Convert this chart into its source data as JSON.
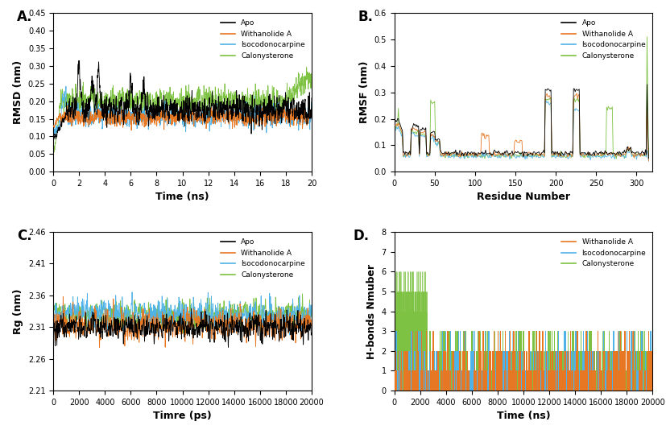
{
  "colors": {
    "Apo": "#000000",
    "Withanolide A": "#E87722",
    "Isocodonocarpine": "#4FB3E8",
    "Calonysterone": "#7DC242"
  },
  "panel_labels": [
    "A.",
    "B.",
    "C.",
    "D."
  ],
  "rmsd": {
    "xlabel": "Time (ns)",
    "ylabel": "RMSD (nm)",
    "xlim": [
      0,
      20
    ],
    "ylim": [
      0,
      0.45
    ],
    "yticks": [
      0,
      0.05,
      0.1,
      0.15,
      0.2,
      0.25,
      0.3,
      0.35,
      0.4,
      0.45
    ],
    "xticks": [
      0,
      2,
      4,
      6,
      8,
      10,
      12,
      14,
      16,
      18,
      20
    ]
  },
  "rmsf": {
    "xlabel": "Residue Number",
    "ylabel": "RMSF (nm)",
    "xlim": [
      0,
      320
    ],
    "ylim": [
      0,
      0.6
    ],
    "yticks": [
      0,
      0.1,
      0.2,
      0.3,
      0.4,
      0.5,
      0.6
    ],
    "xticks": [
      0,
      50,
      100,
      150,
      200,
      250,
      300
    ]
  },
  "rg": {
    "xlabel": "Timre (ps)",
    "ylabel": "Rg (nm)",
    "xlim": [
      0,
      20000
    ],
    "ylim": [
      2.21,
      2.46
    ],
    "yticks": [
      2.21,
      2.26,
      2.31,
      2.36,
      2.41,
      2.46
    ],
    "xticks": [
      0,
      2000,
      4000,
      6000,
      8000,
      10000,
      12000,
      14000,
      16000,
      18000,
      20000
    ]
  },
  "hbonds": {
    "xlabel": "Time (ns)",
    "ylabel": "H-bonds Nmuber",
    "xlim": [
      0,
      20000
    ],
    "ylim": [
      0,
      8
    ],
    "yticks": [
      0,
      1,
      2,
      3,
      4,
      5,
      6,
      7,
      8
    ],
    "xticks": [
      0,
      2000,
      4000,
      6000,
      8000,
      10000,
      12000,
      14000,
      16000,
      18000,
      20000
    ]
  },
  "legend_labels": [
    "Apo",
    "Withanolide A",
    "Isocodonocarpine",
    "Calonysterone"
  ],
  "hbond_legend_labels": [
    "Withanolide A",
    "Isocodonocarpine",
    "Calonysterone"
  ]
}
